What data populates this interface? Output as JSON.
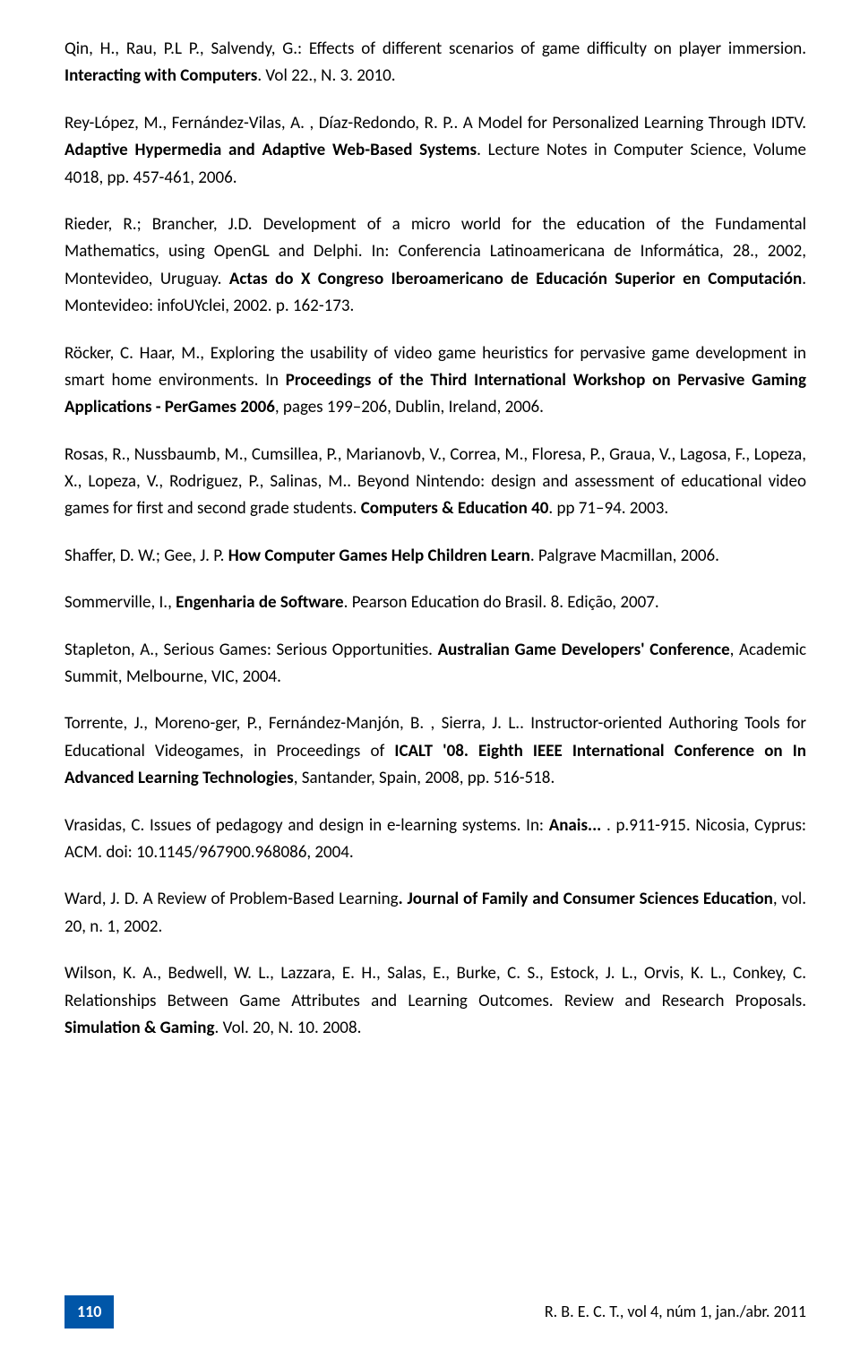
{
  "refs": [
    {
      "pre": "Qin, H., Rau, P.L P., Salvendy, G.: Effects of different scenarios of game difficulty on player immersion. ",
      "bold": "Interacting with Computers",
      "post": ". Vol 22., N. 3. 2010."
    },
    {
      "pre": "Rey-López, M., Fernández-Vilas, A. , Díaz-Redondo, R. P.. A Model for Personalized Learning Through IDTV. ",
      "bold": "Adaptive Hypermedia and Adaptive Web-Based Systems",
      "post": ". Lecture Notes in Computer Science, Volume 4018, pp. 457-461, 2006."
    },
    {
      "pre": "Rieder, R.; Brancher, J.D. Development of a micro world for the education of the Fundamental Mathematics, using OpenGL and Delphi. In: Conferencia Latinoamericana de Informática, 28., 2002, Montevideo, Uruguay. ",
      "bold": "Actas do X Congreso Iberoamericano de Educación Superior en Computación",
      "post": ". Montevideo: infoUYclei, 2002. p. 162-173."
    },
    {
      "pre": "Röcker, C. Haar, M., Exploring the usability of video game heuristics for pervasive game development in smart home environments. In ",
      "bold": "Proceedings of the Third International Workshop on Pervasive Gaming Applications - PerGames 2006",
      "post": ", pages 199–206, Dublin, Ireland, 2006."
    },
    {
      "pre": "Rosas, R., Nussbaumb, M., Cumsillea, P., Marianovb, V., Correa, M., Floresa, P., Graua, V., Lagosa, F., Lopeza, X., Lopeza, V., Rodriguez, P., Salinas, M.. Beyond Nintendo: design and assessment of educational video games for first and second grade students. ",
      "bold": "Computers & Education 40",
      "post": ". pp 71–94. 2003."
    },
    {
      "pre": "Shaffer, D. W.; Gee, J. P. ",
      "bold": "How Computer Games Help Children Learn",
      "post": ". Palgrave Macmillan, 2006."
    },
    {
      "pre": "Sommerville, I., ",
      "bold": "Engenharia de Software",
      "post": ". Pearson Education do Brasil. 8. Edição, 2007."
    },
    {
      "pre": "Stapleton, A., Serious Games: Serious Opportunities. ",
      "bold": "Australian Game Developers' Conference",
      "post": ", Academic Summit, Melbourne, VIC, 2004."
    },
    {
      "pre": "Torrente, J., Moreno-ger, P., Fernández-Manjón, B. , Sierra, J. L.. Instructor-oriented Authoring Tools for Educational Videogames, in Proceedings of ",
      "bold": "ICALT '08. Eighth IEEE International Conference on In Advanced Learning Technologies",
      "post": ", Santander, Spain, 2008, pp. 516-518."
    },
    {
      "pre": "Vrasidas, C. Issues of pedagogy and design in e-learning systems. In:  ",
      "bold": "Anais...",
      "post": " . p.911-915. Nicosia, Cyprus: ACM. doi: 10.1145/967900.968086, 2004."
    },
    {
      "pre": "Ward, J. D. A Review of Problem-Based Learning",
      "bold": ". Journal of Family and Consumer Sciences Education",
      "post": ", vol. 20, n. 1, 2002."
    },
    {
      "pre": "Wilson, K. A., Bedwell, W. L., Lazzara, E. H., Salas, E., Burke, C. S., Estock, J. L., Orvis, K. L., Conkey, C. Relationships Between Game Attributes and Learning Outcomes. Review and Research Proposals. ",
      "bold": "Simulation & Gaming",
      "post": ". Vol. 20, N. 10. 2008."
    }
  ],
  "page_number": "110",
  "footer_citation": "R. B. E. C. T., vol 4, núm 1, jan./abr. 2011",
  "badge_bg": "#0056a8",
  "badge_color": "#ffffff"
}
